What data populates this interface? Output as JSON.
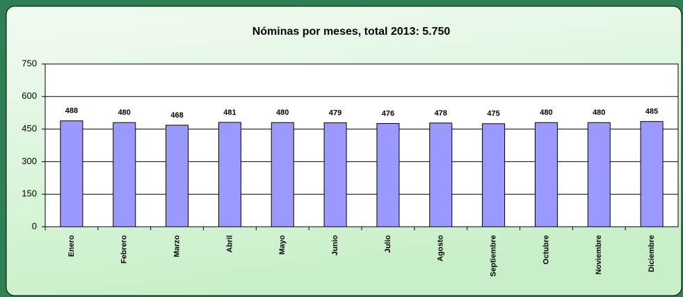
{
  "chart_data": {
    "type": "bar",
    "title": "Nóminas por meses, total 2013: 5.750",
    "categories": [
      "Enero",
      "Febrero",
      "Marzo",
      "Abril",
      "Mayo",
      "Junio",
      "Julio",
      "Agosto",
      "Septiembre",
      "Octubre",
      "Noviembre",
      "Diciembre"
    ],
    "values": [
      488,
      480,
      468,
      481,
      480,
      479,
      476,
      478,
      475,
      480,
      480,
      485
    ],
    "color": "#9999ff",
    "ylim": [
      0,
      750
    ],
    "yticks": [
      0,
      150,
      300,
      450,
      600,
      750
    ],
    "grid": true
  }
}
